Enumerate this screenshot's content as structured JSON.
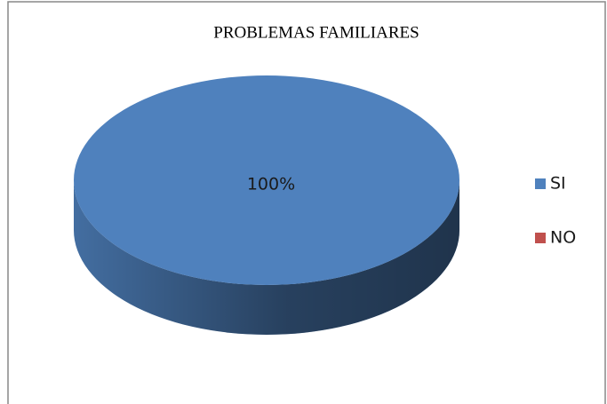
{
  "chart_data": {
    "type": "pie",
    "title": "PROBLEMAS FAMILIARES",
    "categories": [
      "SI",
      "NO"
    ],
    "values": [
      100,
      0
    ],
    "value_labels": [
      "100%",
      null
    ],
    "colors": [
      "#4f81bd",
      "#c0504d"
    ],
    "legend": "right"
  }
}
